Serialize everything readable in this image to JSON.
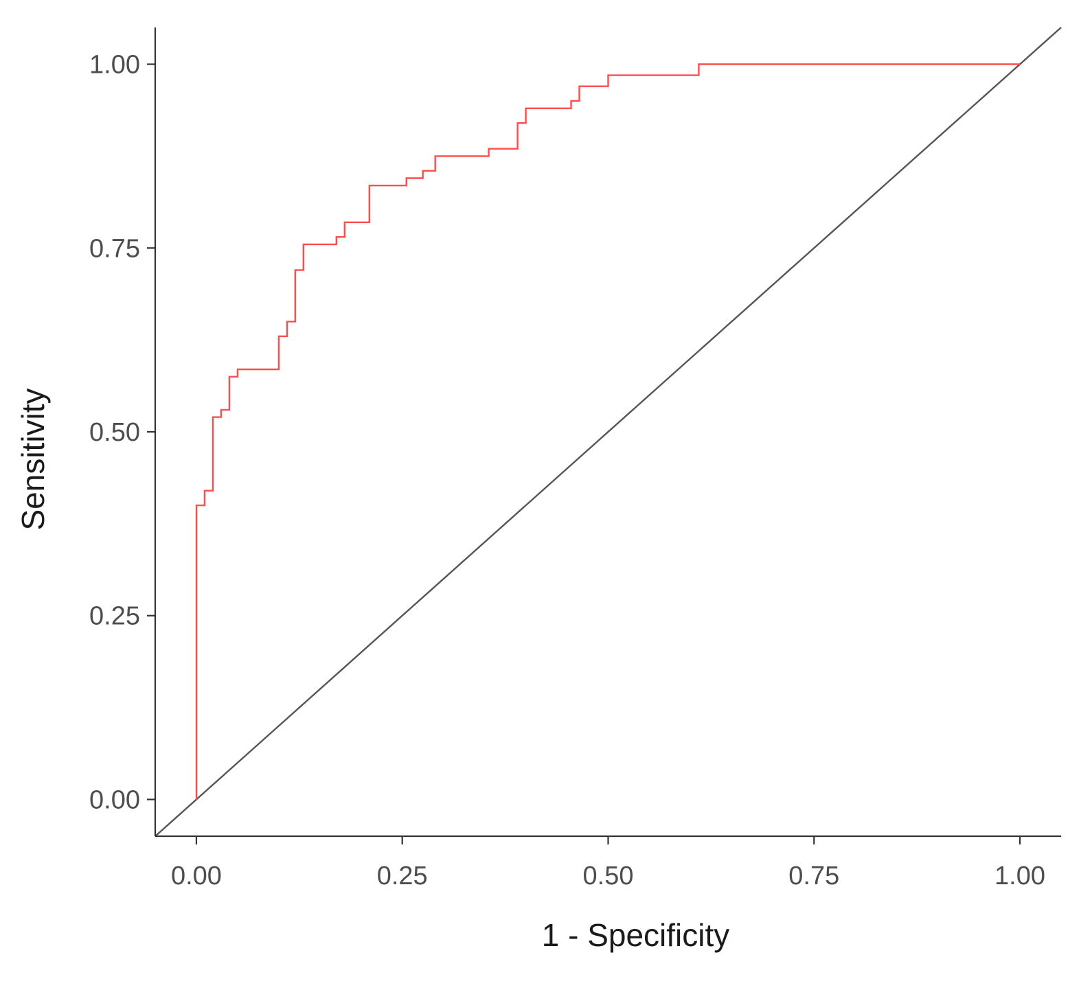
{
  "chart_data": {
    "type": "line",
    "xlabel": "1 - Specificity",
    "ylabel": "Sensitivity",
    "xlim": [
      -0.05,
      1.05
    ],
    "ylim": [
      -0.05,
      1.05
    ],
    "x_ticks": [
      "0.00",
      "0.25",
      "0.50",
      "0.75",
      "1.00"
    ],
    "y_ticks": [
      "0.00",
      "0.25",
      "0.50",
      "0.75",
      "1.00"
    ],
    "grid": false,
    "colors": {
      "roc": "#ff4d4d",
      "reference": "#555555",
      "axis": "#333333"
    },
    "series": [
      {
        "step": true,
        "x": [
          0,
          0,
          0.01,
          0.01,
          0.02,
          0.02,
          0.03,
          0.03,
          0.04,
          0.04,
          0.05,
          0.05,
          0.1,
          0.1,
          0.11,
          0.11,
          0.12,
          0.12,
          0.13,
          0.13,
          0.17,
          0.17,
          0.18,
          0.18,
          0.21,
          0.21,
          0.255,
          0.255,
          0.275,
          0.275,
          0.29,
          0.29,
          0.355,
          0.355,
          0.39,
          0.39,
          0.4,
          0.4,
          0.455,
          0.455,
          0.465,
          0.465,
          0.5,
          0.5,
          0.61,
          0.61,
          1.0
        ],
        "y": [
          0,
          0.4,
          0.4,
          0.42,
          0.42,
          0.52,
          0.52,
          0.53,
          0.53,
          0.575,
          0.575,
          0.585,
          0.585,
          0.63,
          0.63,
          0.65,
          0.65,
          0.72,
          0.72,
          0.755,
          0.755,
          0.765,
          0.765,
          0.785,
          0.785,
          0.835,
          0.835,
          0.845,
          0.845,
          0.855,
          0.855,
          0.875,
          0.875,
          0.885,
          0.885,
          0.92,
          0.92,
          0.94,
          0.94,
          0.95,
          0.95,
          0.97,
          0.97,
          0.985,
          0.985,
          1.0,
          1.0
        ]
      },
      {
        "x": [
          -0.05,
          1.05
        ],
        "y": [
          -0.05,
          1.05
        ]
      }
    ]
  }
}
